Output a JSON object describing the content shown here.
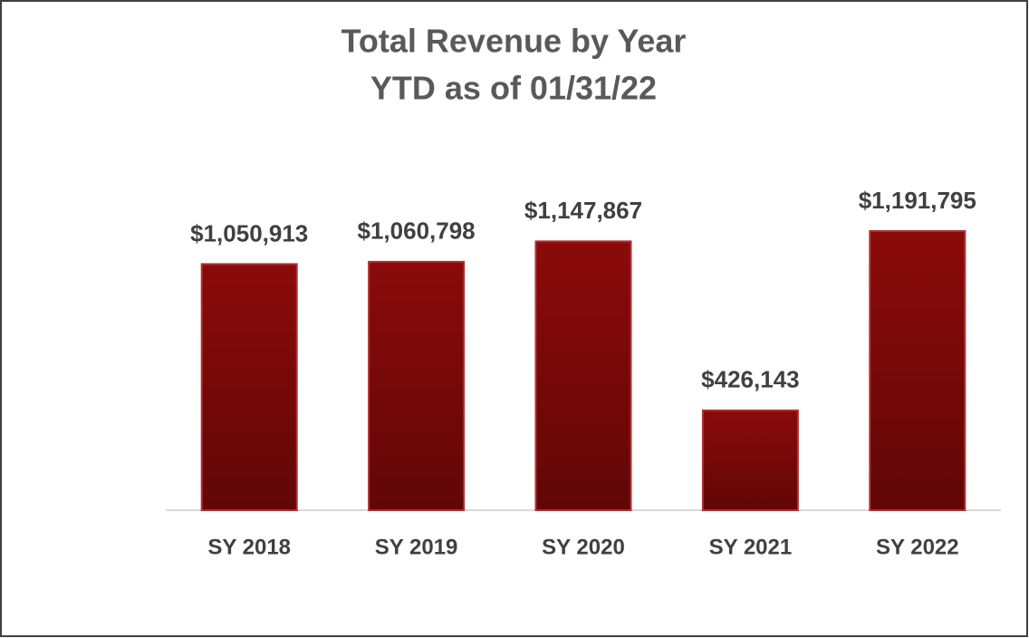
{
  "chart_data": {
    "type": "bar",
    "title": "Total Revenue by Year",
    "subtitle": "YTD as of 01/31/22",
    "categories": [
      "SY 2018",
      "SY 2019",
      "SY 2020",
      "SY 2021",
      "SY 2022"
    ],
    "values": [
      1050913,
      1060798,
      1147867,
      426143,
      1191795
    ],
    "value_labels": [
      "$1,050,913",
      "$1,060,798",
      "$1,147,867",
      "$426,143",
      "$1,191,795"
    ],
    "color": "#8b0a0a"
  }
}
